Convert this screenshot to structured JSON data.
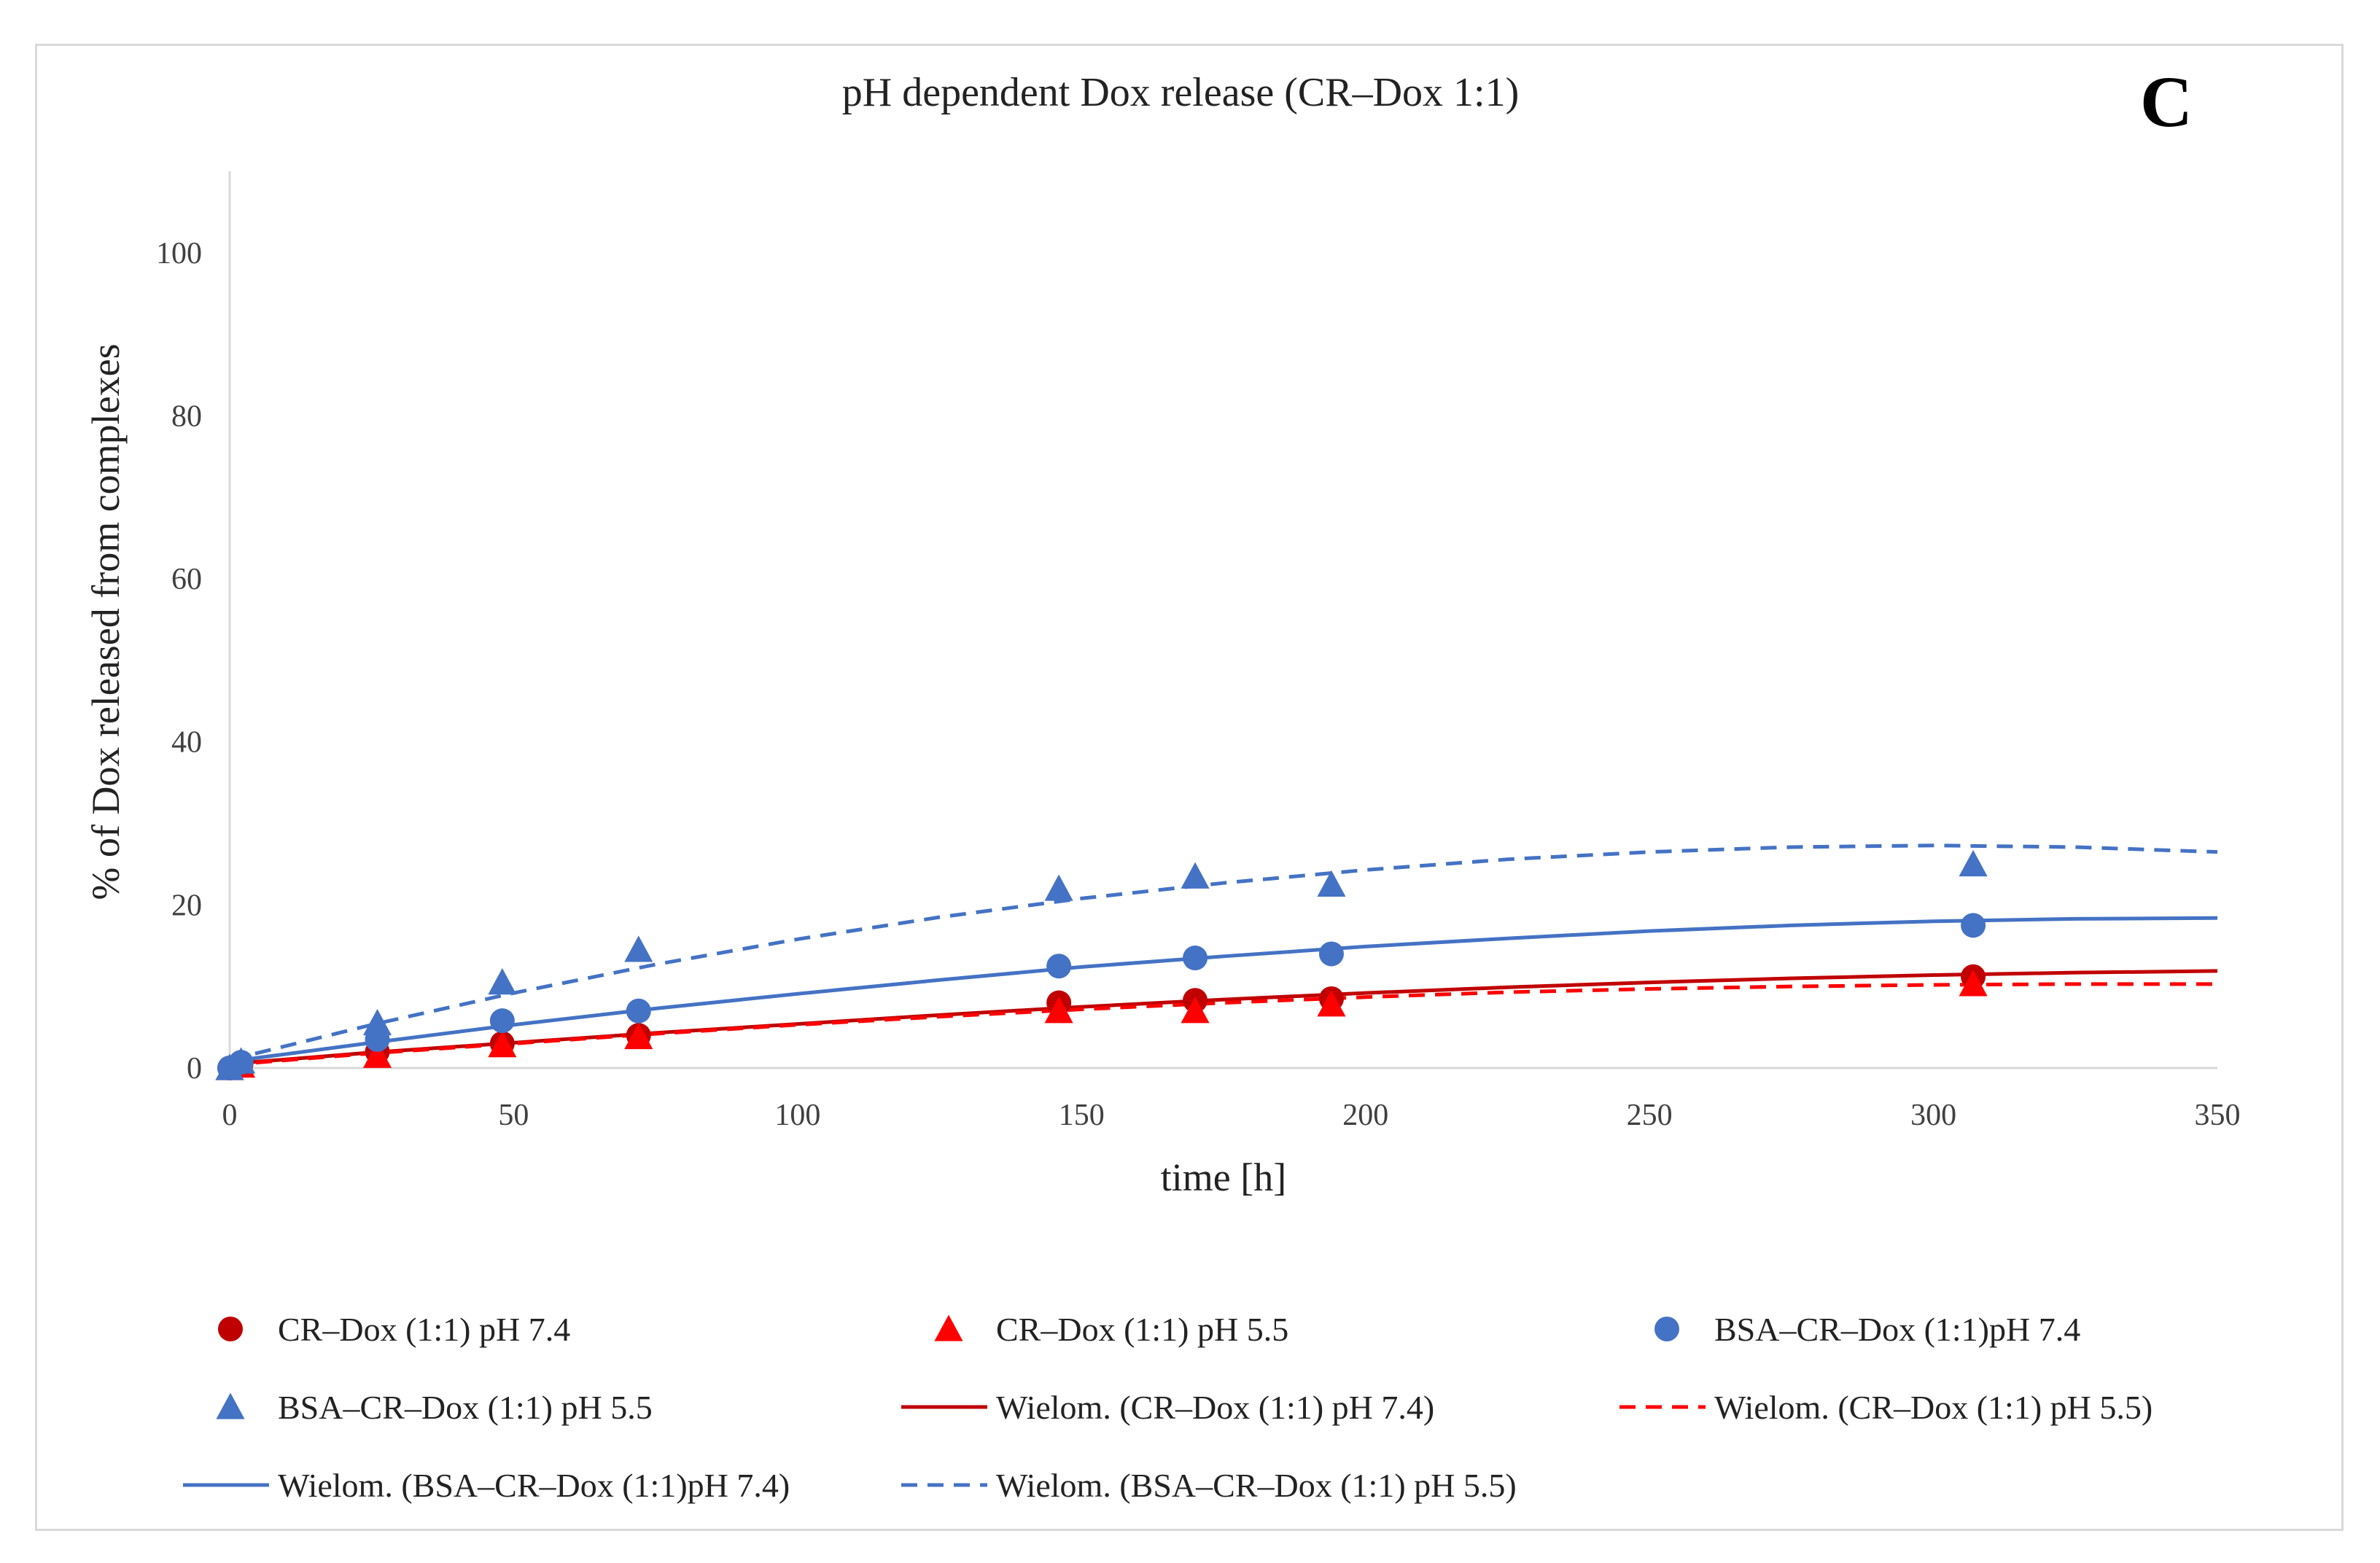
{
  "panel_letter": "C",
  "chart_data": {
    "type": "scatter",
    "title": "pH dependent Dox release (CR–Dox 1:1)",
    "xlabel": "time [h]",
    "ylabel": "% of Dox released from complexes",
    "xlim": [
      0,
      350
    ],
    "ylim": [
      0,
      110
    ],
    "x_ticks": [
      0,
      50,
      100,
      150,
      200,
      250,
      300,
      350
    ],
    "y_ticks": [
      0,
      20,
      40,
      60,
      80,
      100
    ],
    "grid": false,
    "legend_position": "bottom",
    "series": [
      {
        "name": "CR–Dox (1:1) pH 7.4",
        "marker": "circle",
        "color": "#c00000",
        "x": [
          0,
          2,
          26,
          48,
          72,
          146,
          170,
          194,
          307
        ],
        "y": [
          0,
          0.5,
          2,
          3,
          4,
          8,
          8.3,
          8.5,
          11.2
        ]
      },
      {
        "name": "CR–Dox (1:1) pH 5.5",
        "marker": "triangle",
        "color": "#ff0000",
        "x": [
          0,
          2,
          26,
          48,
          72,
          146,
          170,
          194,
          307
        ],
        "y": [
          0,
          0.3,
          1.5,
          2.8,
          3.8,
          7.0,
          7.0,
          7.8,
          10.3
        ]
      },
      {
        "name": "BSA–CR–Dox (1:1)pH 7.4",
        "marker": "circle",
        "color": "#4472c4",
        "x": [
          0,
          2,
          26,
          48,
          72,
          146,
          170,
          194,
          307
        ],
        "y": [
          0,
          0.7,
          3.5,
          5.8,
          7.0,
          12.5,
          13.5,
          14.0,
          17.5
        ]
      },
      {
        "name": "BSA–CR–Dox (1:1) pH 5.5",
        "marker": "triangle",
        "color": "#4472c4",
        "x": [
          0,
          2,
          26,
          48,
          72,
          146,
          170,
          194,
          307
        ],
        "y": [
          0,
          0.8,
          5.5,
          10.5,
          14.5,
          22.0,
          23.5,
          22.5,
          25.0
        ]
      }
    ],
    "trendlines": [
      {
        "name": "Wielom. (CR–Dox (1:1) pH 7.4)",
        "color": "#c00000",
        "dash": "solid",
        "x": [
          0,
          25,
          50,
          75,
          100,
          125,
          150,
          175,
          200,
          225,
          250,
          275,
          300,
          325,
          350
        ],
        "y": [
          0.5,
          1.9,
          3.1,
          4.3,
          5.4,
          6.5,
          7.5,
          8.4,
          9.2,
          9.9,
          10.5,
          11.0,
          11.4,
          11.7,
          11.9
        ]
      },
      {
        "name": "Wielom. (CR–Dox (1:1) pH 5.5)",
        "color": "#ff0000",
        "dash": "dashed",
        "x": [
          0,
          25,
          50,
          75,
          100,
          125,
          150,
          175,
          200,
          225,
          250,
          275,
          300,
          325,
          350
        ],
        "y": [
          0.4,
          1.8,
          3.0,
          4.2,
          5.3,
          6.3,
          7.2,
          8.0,
          8.7,
          9.3,
          9.7,
          10.0,
          10.2,
          10.3,
          10.3
        ]
      },
      {
        "name": "Wielom. (BSA–CR–Dox (1:1)pH 7.4)",
        "color": "#4472c4",
        "dash": "solid",
        "x": [
          0,
          25,
          50,
          75,
          100,
          125,
          150,
          175,
          200,
          225,
          250,
          275,
          300,
          325,
          350
        ],
        "y": [
          0.8,
          3.1,
          5.3,
          7.3,
          9.1,
          10.8,
          12.4,
          13.7,
          14.9,
          15.9,
          16.8,
          17.5,
          18.0,
          18.3,
          18.4
        ]
      },
      {
        "name": "Wielom. (BSA–CR–Dox (1:1) pH 5.5)",
        "color": "#4472c4",
        "dash": "dashed",
        "x": [
          0,
          25,
          50,
          75,
          100,
          125,
          150,
          175,
          200,
          225,
          250,
          275,
          300,
          325,
          350
        ],
        "y": [
          1.0,
          5.3,
          9.2,
          12.7,
          15.8,
          18.5,
          20.8,
          22.7,
          24.3,
          25.6,
          26.5,
          27.1,
          27.3,
          27.1,
          26.5
        ]
      }
    ],
    "legend": [
      {
        "label": "CR–Dox (1:1) pH 7.4",
        "kind": "marker",
        "marker": "circle",
        "color": "#c00000"
      },
      {
        "label": "CR–Dox (1:1) pH 5.5",
        "kind": "marker",
        "marker": "triangle",
        "color": "#ff0000"
      },
      {
        "label": "BSA–CR–Dox (1:1)pH 7.4",
        "kind": "marker",
        "marker": "circle",
        "color": "#4472c4"
      },
      {
        "label": "BSA–CR–Dox (1:1) pH 5.5",
        "kind": "marker",
        "marker": "triangle",
        "color": "#4472c4"
      },
      {
        "label": "Wielom. (CR–Dox (1:1) pH 7.4)",
        "kind": "line",
        "dash": "solid",
        "color": "#c00000"
      },
      {
        "label": "Wielom. (CR–Dox (1:1) pH 5.5)",
        "kind": "line",
        "dash": "dashed",
        "color": "#ff0000"
      },
      {
        "label": "Wielom. (BSA–CR–Dox (1:1)pH 7.4)",
        "kind": "line",
        "dash": "solid",
        "color": "#4472c4"
      },
      {
        "label": "Wielom. (BSA–CR–Dox (1:1) pH 5.5)",
        "kind": "line",
        "dash": "dashed",
        "color": "#4472c4"
      }
    ]
  }
}
